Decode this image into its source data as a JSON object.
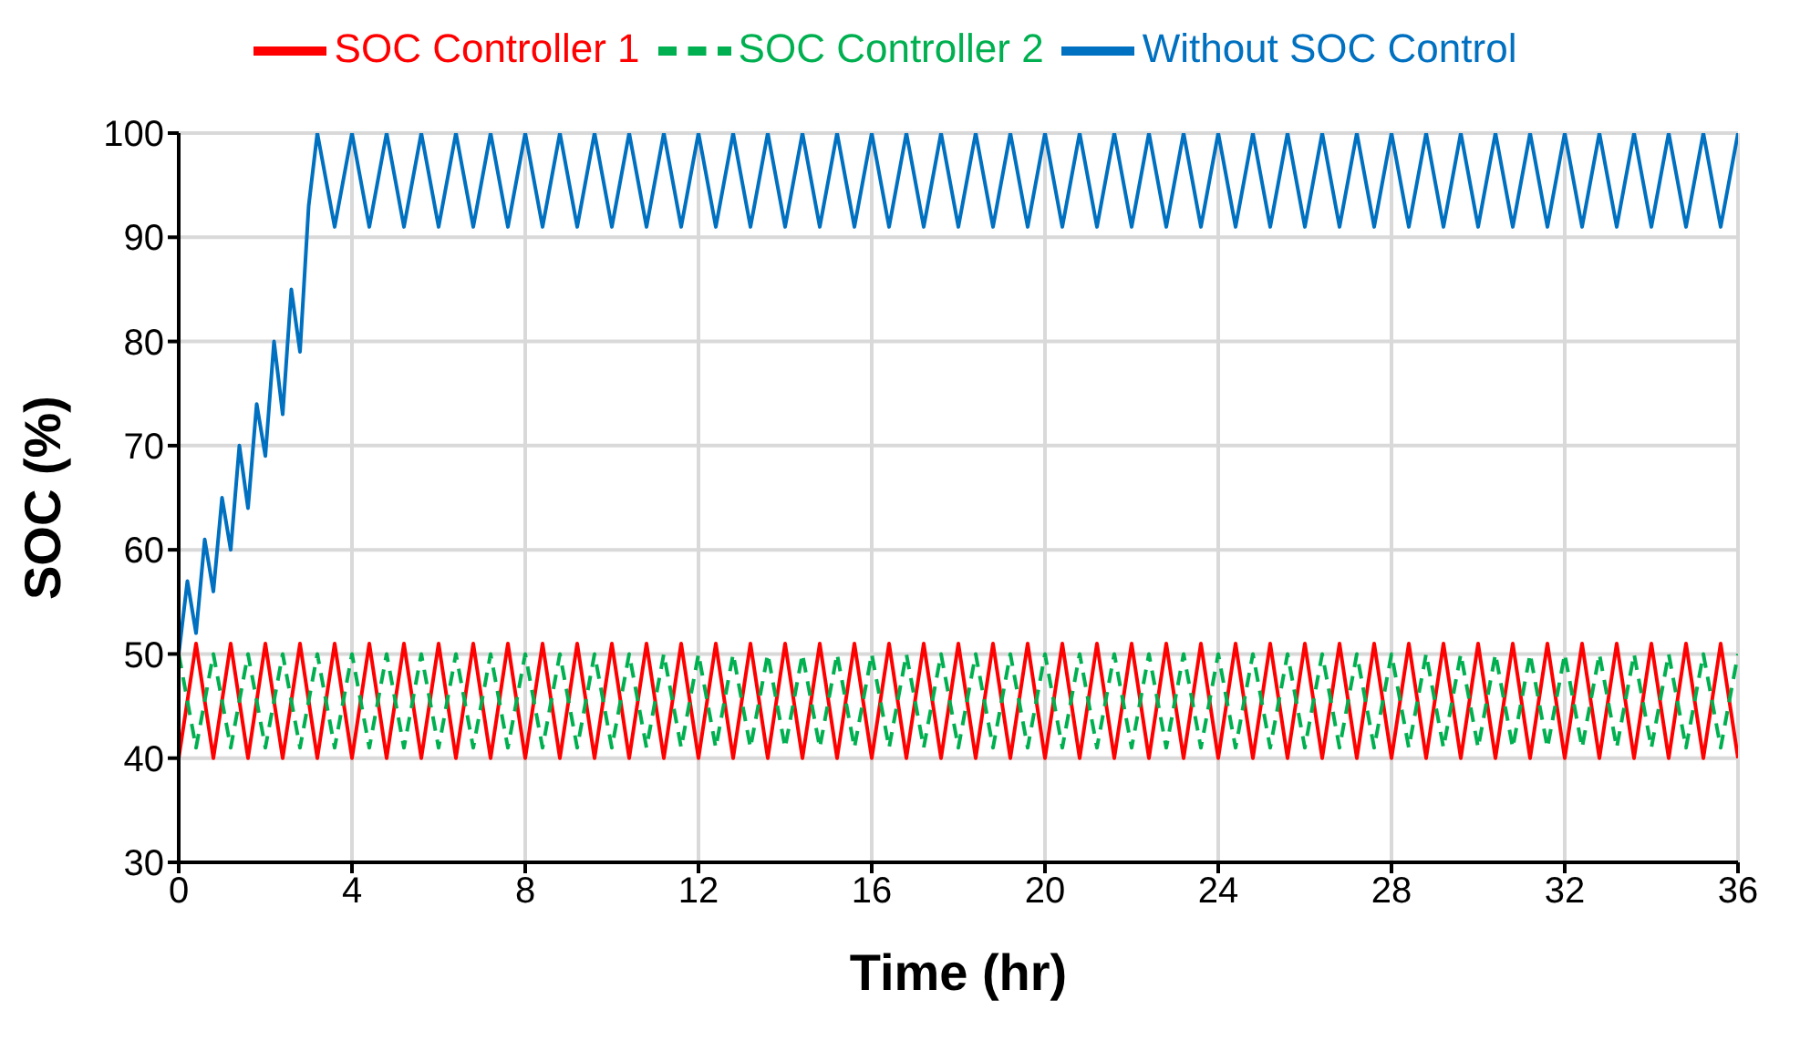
{
  "chart_data": {
    "type": "line",
    "xlabel": "Time (hr)",
    "ylabel": "SOC (%)",
    "xlim": [
      0,
      36
    ],
    "xticks": [
      0,
      4,
      8,
      12,
      16,
      20,
      24,
      28,
      32,
      36
    ],
    "ylim": [
      30,
      100
    ],
    "yticks": [
      30,
      40,
      50,
      60,
      70,
      80,
      90,
      100
    ],
    "grid": true,
    "legend": "top",
    "marker": "none",
    "x": [
      0,
      0.4,
      0.8,
      1.2,
      1.6,
      2,
      2.4,
      2.8,
      3.2,
      3.6,
      4,
      4.4,
      4.8,
      5.2,
      5.6,
      6,
      6.4,
      6.8,
      7.2,
      7.6,
      8,
      8.4,
      8.8,
      9.2,
      9.6,
      10,
      10.4,
      10.8,
      11.2,
      11.6,
      12,
      12.4,
      12.8,
      13.2,
      13.6,
      14,
      14.4,
      14.8,
      15.2,
      15.6,
      16,
      16.4,
      16.8,
      17.2,
      17.6,
      18,
      18.4,
      18.8,
      19.2,
      19.6,
      20,
      20.4,
      20.8,
      21.2,
      21.6,
      22,
      22.4,
      22.8,
      23.2,
      23.6,
      24,
      24.4,
      24.8,
      25.2,
      25.6,
      26,
      26.4,
      26.8,
      27.2,
      27.6,
      28,
      28.4,
      28.8,
      29.2,
      29.6,
      30,
      30.4,
      30.8,
      31.2,
      31.6,
      32,
      32.4,
      32.8,
      33.2,
      33.6,
      34,
      34.4,
      34.8,
      35.2,
      35.6,
      36
    ],
    "series": [
      {
        "name": "Without SOC Control",
        "color": "#0070c0",
        "line_style": "solid",
        "x": [
          0,
          0.2,
          0.4,
          0.6,
          0.8,
          1,
          1.2,
          1.4,
          1.6,
          1.8,
          2,
          2.2,
          2.4,
          2.6,
          2.8,
          3,
          3.2,
          3.6,
          4,
          4.4,
          4.8,
          5.2,
          5.6,
          6,
          6.4,
          6.8,
          7.2,
          7.6,
          8,
          8.4,
          8.8,
          9.2,
          9.6,
          10,
          10.4,
          10.8,
          11.2,
          11.6,
          12,
          12.4,
          12.8,
          13.2,
          13.6,
          14,
          14.4,
          14.8,
          15.2,
          15.6,
          16,
          16.4,
          16.8,
          17.2,
          17.6,
          18,
          18.4,
          18.8,
          19.2,
          19.6,
          20,
          20.4,
          20.8,
          21.2,
          21.6,
          22,
          22.4,
          22.8,
          23.2,
          23.6,
          24,
          24.4,
          24.8,
          25.2,
          25.6,
          26,
          26.4,
          26.8,
          27.2,
          27.6,
          28,
          28.4,
          28.8,
          29.2,
          29.6,
          30,
          30.4,
          30.8,
          31.2,
          31.6,
          32,
          32.4,
          32.8,
          33.2,
          33.6,
          34,
          34.4,
          34.8,
          35.2,
          35.6,
          36
        ],
        "values": [
          50,
          57,
          52,
          61,
          56,
          65,
          60,
          70,
          64,
          74,
          69,
          80,
          73,
          85,
          79,
          93,
          100,
          91,
          100,
          91,
          100,
          91,
          100,
          91,
          100,
          91,
          100,
          91,
          100,
          91,
          100,
          91,
          100,
          91,
          100,
          91,
          100,
          91,
          100,
          91,
          100,
          91,
          100,
          91,
          100,
          91,
          100,
          91,
          100,
          91,
          100,
          91,
          100,
          91,
          100,
          91,
          100,
          91,
          100,
          91,
          100,
          91,
          100,
          91,
          100,
          91,
          100,
          91,
          100,
          91,
          100,
          91,
          100,
          91,
          100,
          91,
          100,
          91,
          100,
          91,
          100,
          91,
          100,
          91,
          100,
          91,
          100,
          91,
          100,
          91,
          100,
          91,
          100,
          91,
          100,
          91,
          100,
          91,
          100
        ]
      },
      {
        "name": "SOC Controller 1",
        "color": "#ff0000",
        "line_style": "solid",
        "values": [
          40,
          51,
          40,
          51,
          40,
          51,
          40,
          51,
          40,
          51,
          40,
          51,
          40,
          51,
          40,
          51,
          40,
          51,
          40,
          51,
          40,
          51,
          40,
          51,
          40,
          51,
          40,
          51,
          40,
          51,
          40,
          51,
          40,
          51,
          40,
          51,
          40,
          51,
          40,
          51,
          40,
          51,
          40,
          51,
          40,
          51,
          40,
          51,
          40,
          51,
          40,
          51,
          40,
          51,
          40,
          51,
          40,
          51,
          40,
          51,
          40,
          51,
          40,
          51,
          40,
          51,
          40,
          51,
          40,
          51,
          40,
          51,
          40,
          51,
          40,
          51,
          40,
          51,
          40,
          51,
          40,
          51,
          40,
          51,
          40,
          51,
          40,
          51,
          40,
          51,
          40
        ]
      },
      {
        "name": "SOC Controller 2",
        "color": "#00b050",
        "line_style": "dashed",
        "values": [
          50,
          41,
          50,
          41,
          50,
          41,
          50,
          41,
          50,
          41,
          50,
          41,
          50,
          41,
          50,
          41,
          50,
          41,
          50,
          41,
          50,
          41,
          50,
          41,
          50,
          41,
          50,
          41,
          50,
          41,
          50,
          41,
          50,
          41,
          50,
          41,
          50,
          41,
          50,
          41,
          50,
          41,
          50,
          41,
          50,
          41,
          50,
          41,
          50,
          41,
          50,
          41,
          50,
          41,
          50,
          41,
          50,
          41,
          50,
          41,
          50,
          41,
          50,
          41,
          50,
          41,
          50,
          41,
          50,
          41,
          50,
          41,
          50,
          41,
          50,
          41,
          50,
          41,
          50,
          41,
          50,
          41,
          50,
          41,
          50,
          41,
          50,
          41,
          50,
          41,
          50
        ]
      }
    ]
  }
}
